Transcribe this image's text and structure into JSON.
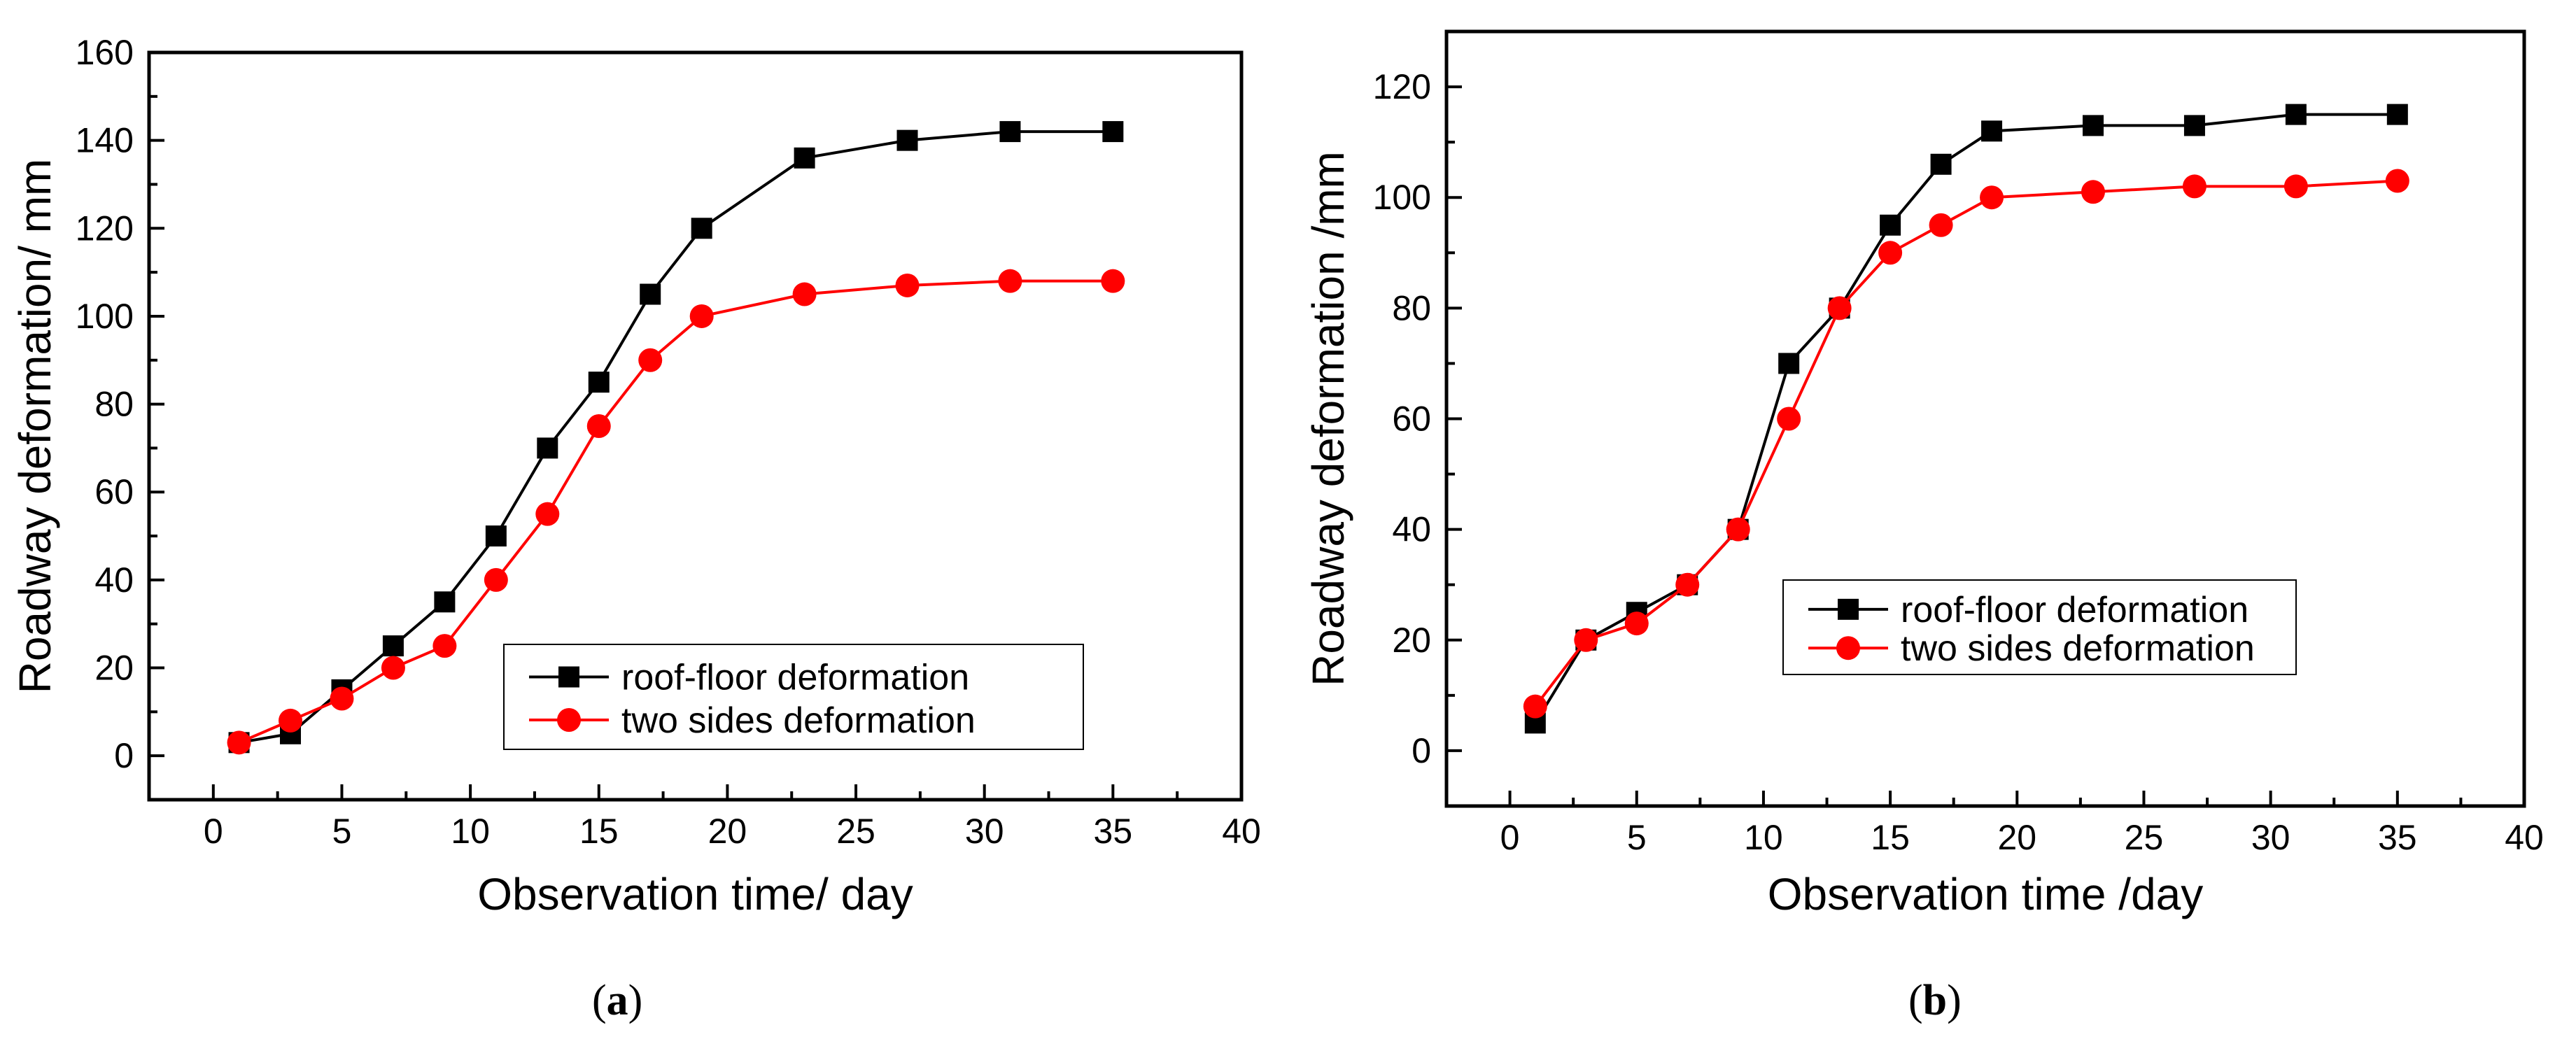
{
  "chart_data": [
    {
      "panel_label": "a",
      "type": "line",
      "xlabel": "Observation time/ day",
      "ylabel": "Roadway deformation/ mm",
      "xlim": [
        -2.5,
        40
      ],
      "ylim": [
        -10,
        160
      ],
      "xticks": [
        0,
        5,
        10,
        15,
        20,
        25,
        30,
        35,
        40
      ],
      "yticks": [
        0,
        20,
        40,
        60,
        80,
        100,
        120,
        140,
        160
      ],
      "x": [
        1,
        3,
        5,
        7,
        9,
        11,
        13,
        15,
        17,
        19,
        23,
        27,
        31,
        35
      ],
      "series": [
        {
          "name": "roof-floor deformation",
          "color": "#000000",
          "marker": "square",
          "values": [
            3,
            5,
            15,
            25,
            35,
            50,
            70,
            85,
            105,
            120,
            136,
            140,
            142,
            142
          ]
        },
        {
          "name": "two sides deformation",
          "color": "#ff0000",
          "marker": "circle",
          "values": [
            3,
            8,
            13,
            20,
            25,
            40,
            55,
            75,
            90,
            100,
            105,
            107,
            108,
            108
          ]
        }
      ],
      "legend_position": "bottom-right",
      "grid": false
    },
    {
      "panel_label": "b",
      "type": "line",
      "xlabel": "Observation time /day",
      "ylabel": "Roadway deformation /mm",
      "xlim": [
        -2.5,
        40
      ],
      "ylim": [
        -10,
        130
      ],
      "xticks": [
        0,
        5,
        10,
        15,
        20,
        25,
        30,
        35,
        40
      ],
      "yticks": [
        0,
        20,
        40,
        60,
        80,
        100,
        120
      ],
      "x": [
        1,
        3,
        5,
        7,
        9,
        11,
        13,
        15,
        17,
        19,
        23,
        27,
        31,
        35
      ],
      "series": [
        {
          "name": "roof-floor deformation",
          "color": "#000000",
          "marker": "square",
          "values": [
            5,
            20,
            25,
            30,
            40,
            70,
            80,
            95,
            106,
            112,
            113,
            113,
            115,
            115
          ]
        },
        {
          "name": "two sides deformation",
          "color": "#ff0000",
          "marker": "circle",
          "values": [
            8,
            20,
            23,
            30,
            40,
            60,
            80,
            90,
            95,
            100,
            101,
            102,
            102,
            103
          ]
        }
      ],
      "legend_position": "center-right",
      "grid": false
    }
  ]
}
